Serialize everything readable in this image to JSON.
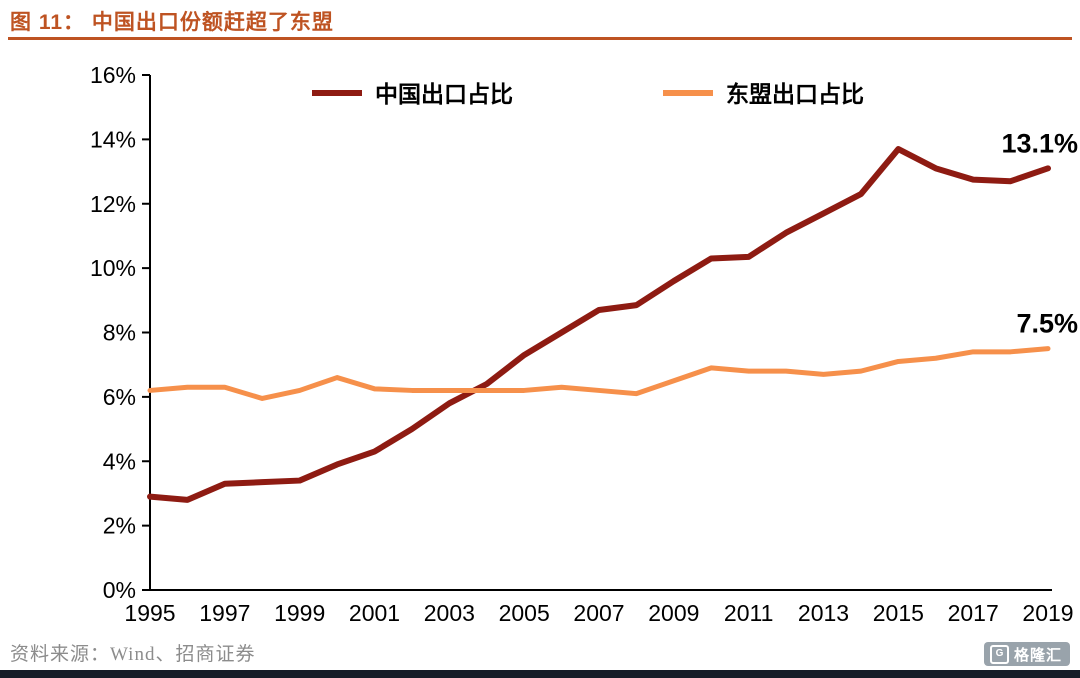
{
  "header": {
    "title": "图 11： 中国出口份额赶超了东盟",
    "accent_color": "#BE5322"
  },
  "footer": {
    "source": "资料来源：Wind、招商证券",
    "logo_icon": "G",
    "logo_text": "格隆汇"
  },
  "chart_data": {
    "type": "line",
    "title": "图 11： 中国出口份额赶超了东盟",
    "x": [
      1995,
      1996,
      1997,
      1998,
      1999,
      2000,
      2001,
      2002,
      2003,
      2004,
      2005,
      2006,
      2007,
      2008,
      2009,
      2010,
      2011,
      2012,
      2013,
      2014,
      2015,
      2016,
      2017,
      2018,
      2019
    ],
    "xticks": [
      1995,
      1997,
      1999,
      2001,
      2003,
      2005,
      2007,
      2009,
      2011,
      2013,
      2015,
      2017,
      2019
    ],
    "ylim": [
      0,
      16
    ],
    "ytick_step": 2,
    "ytick_suffix": "%",
    "grid": false,
    "legend_position": "top",
    "series": [
      {
        "name": "中国出口占比",
        "color": "#8E1B12",
        "end_label": "13.1%",
        "values": [
          2.9,
          2.8,
          3.3,
          3.35,
          3.4,
          3.9,
          4.3,
          5.0,
          5.8,
          6.4,
          7.3,
          8.0,
          8.7,
          8.85,
          9.6,
          10.3,
          10.35,
          11.1,
          11.7,
          12.3,
          13.7,
          13.1,
          12.75,
          12.7,
          13.1
        ]
      },
      {
        "name": "东盟出口占比",
        "color": "#F6904B",
        "end_label": "7.5%",
        "values": [
          6.2,
          6.3,
          6.3,
          5.95,
          6.2,
          6.6,
          6.25,
          6.2,
          6.2,
          6.2,
          6.2,
          6.3,
          6.2,
          6.1,
          6.5,
          6.9,
          6.8,
          6.8,
          6.7,
          6.8,
          7.1,
          7.2,
          7.4,
          7.4,
          7.5
        ]
      }
    ]
  }
}
